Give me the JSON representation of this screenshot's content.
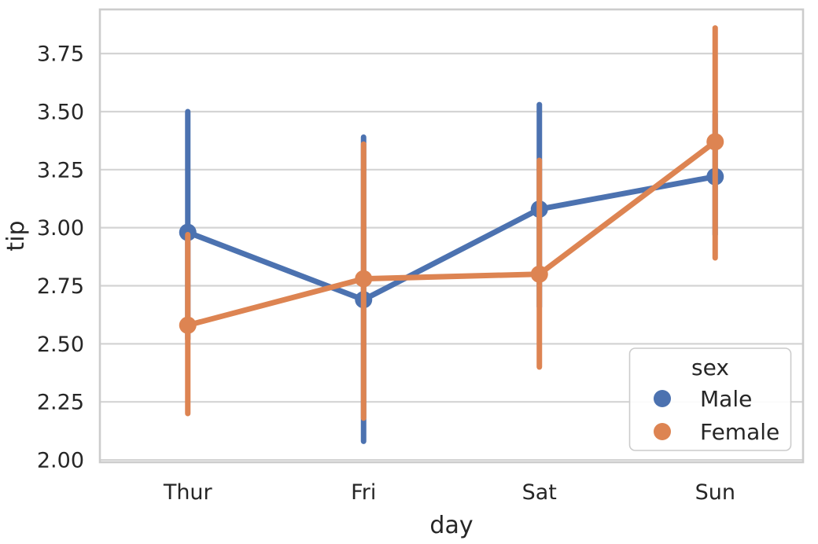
{
  "chart_data": {
    "type": "line",
    "subtype": "pointplot-with-error-bars",
    "title": "",
    "xlabel": "day",
    "ylabel": "tip",
    "categories": [
      "Thur",
      "Fri",
      "Sat",
      "Sun"
    ],
    "yticks": [
      "2.00",
      "2.25",
      "2.50",
      "2.75",
      "3.00",
      "3.25",
      "3.50",
      "3.75"
    ],
    "ylim": [
      1.99,
      3.94
    ],
    "grid": true,
    "series": [
      {
        "name": "Male",
        "color": "#4C72B0",
        "values": [
          2.98,
          2.69,
          3.08,
          3.22
        ],
        "ci_low": [
          2.52,
          2.08,
          2.66,
          2.97
        ],
        "ci_high": [
          3.5,
          3.39,
          3.53,
          3.49
        ]
      },
      {
        "name": "Female",
        "color": "#DD8452",
        "values": [
          2.58,
          2.78,
          2.8,
          3.37
        ],
        "ci_low": [
          2.2,
          2.18,
          2.4,
          2.87
        ],
        "ci_high": [
          2.97,
          3.36,
          3.29,
          3.86
        ]
      }
    ],
    "legend": {
      "title": "sex",
      "position": "lower right"
    },
    "style": {
      "grid_color": "#d4d4d4",
      "spine_color": "#cccccc",
      "text_color": "#262626",
      "background": "#ffffff"
    }
  }
}
